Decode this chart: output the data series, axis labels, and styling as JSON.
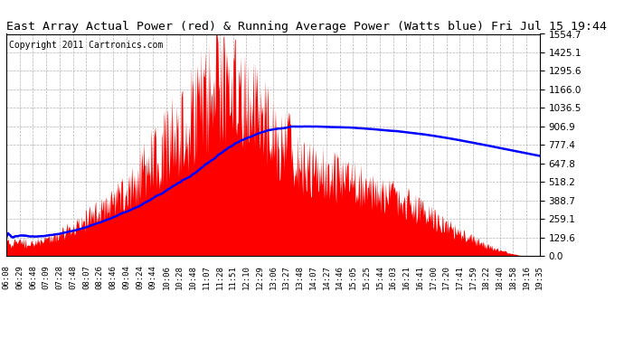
{
  "title": "East Array Actual Power (red) & Running Average Power (Watts blue) Fri Jul 15 19:44",
  "copyright": "Copyright 2011 Cartronics.com",
  "yticks": [
    0.0,
    129.6,
    259.1,
    388.7,
    518.2,
    647.8,
    777.4,
    906.9,
    1036.5,
    1166.0,
    1295.6,
    1425.1,
    1554.7
  ],
  "ymax": 1554.7,
  "fill_color": "red",
  "avg_color": "blue",
  "bg_color": "white",
  "grid_color": "#aaaaaa",
  "title_fontsize": 9.5,
  "copyright_fontsize": 7,
  "xtick_fontsize": 6.5,
  "ytick_fontsize": 7.5
}
